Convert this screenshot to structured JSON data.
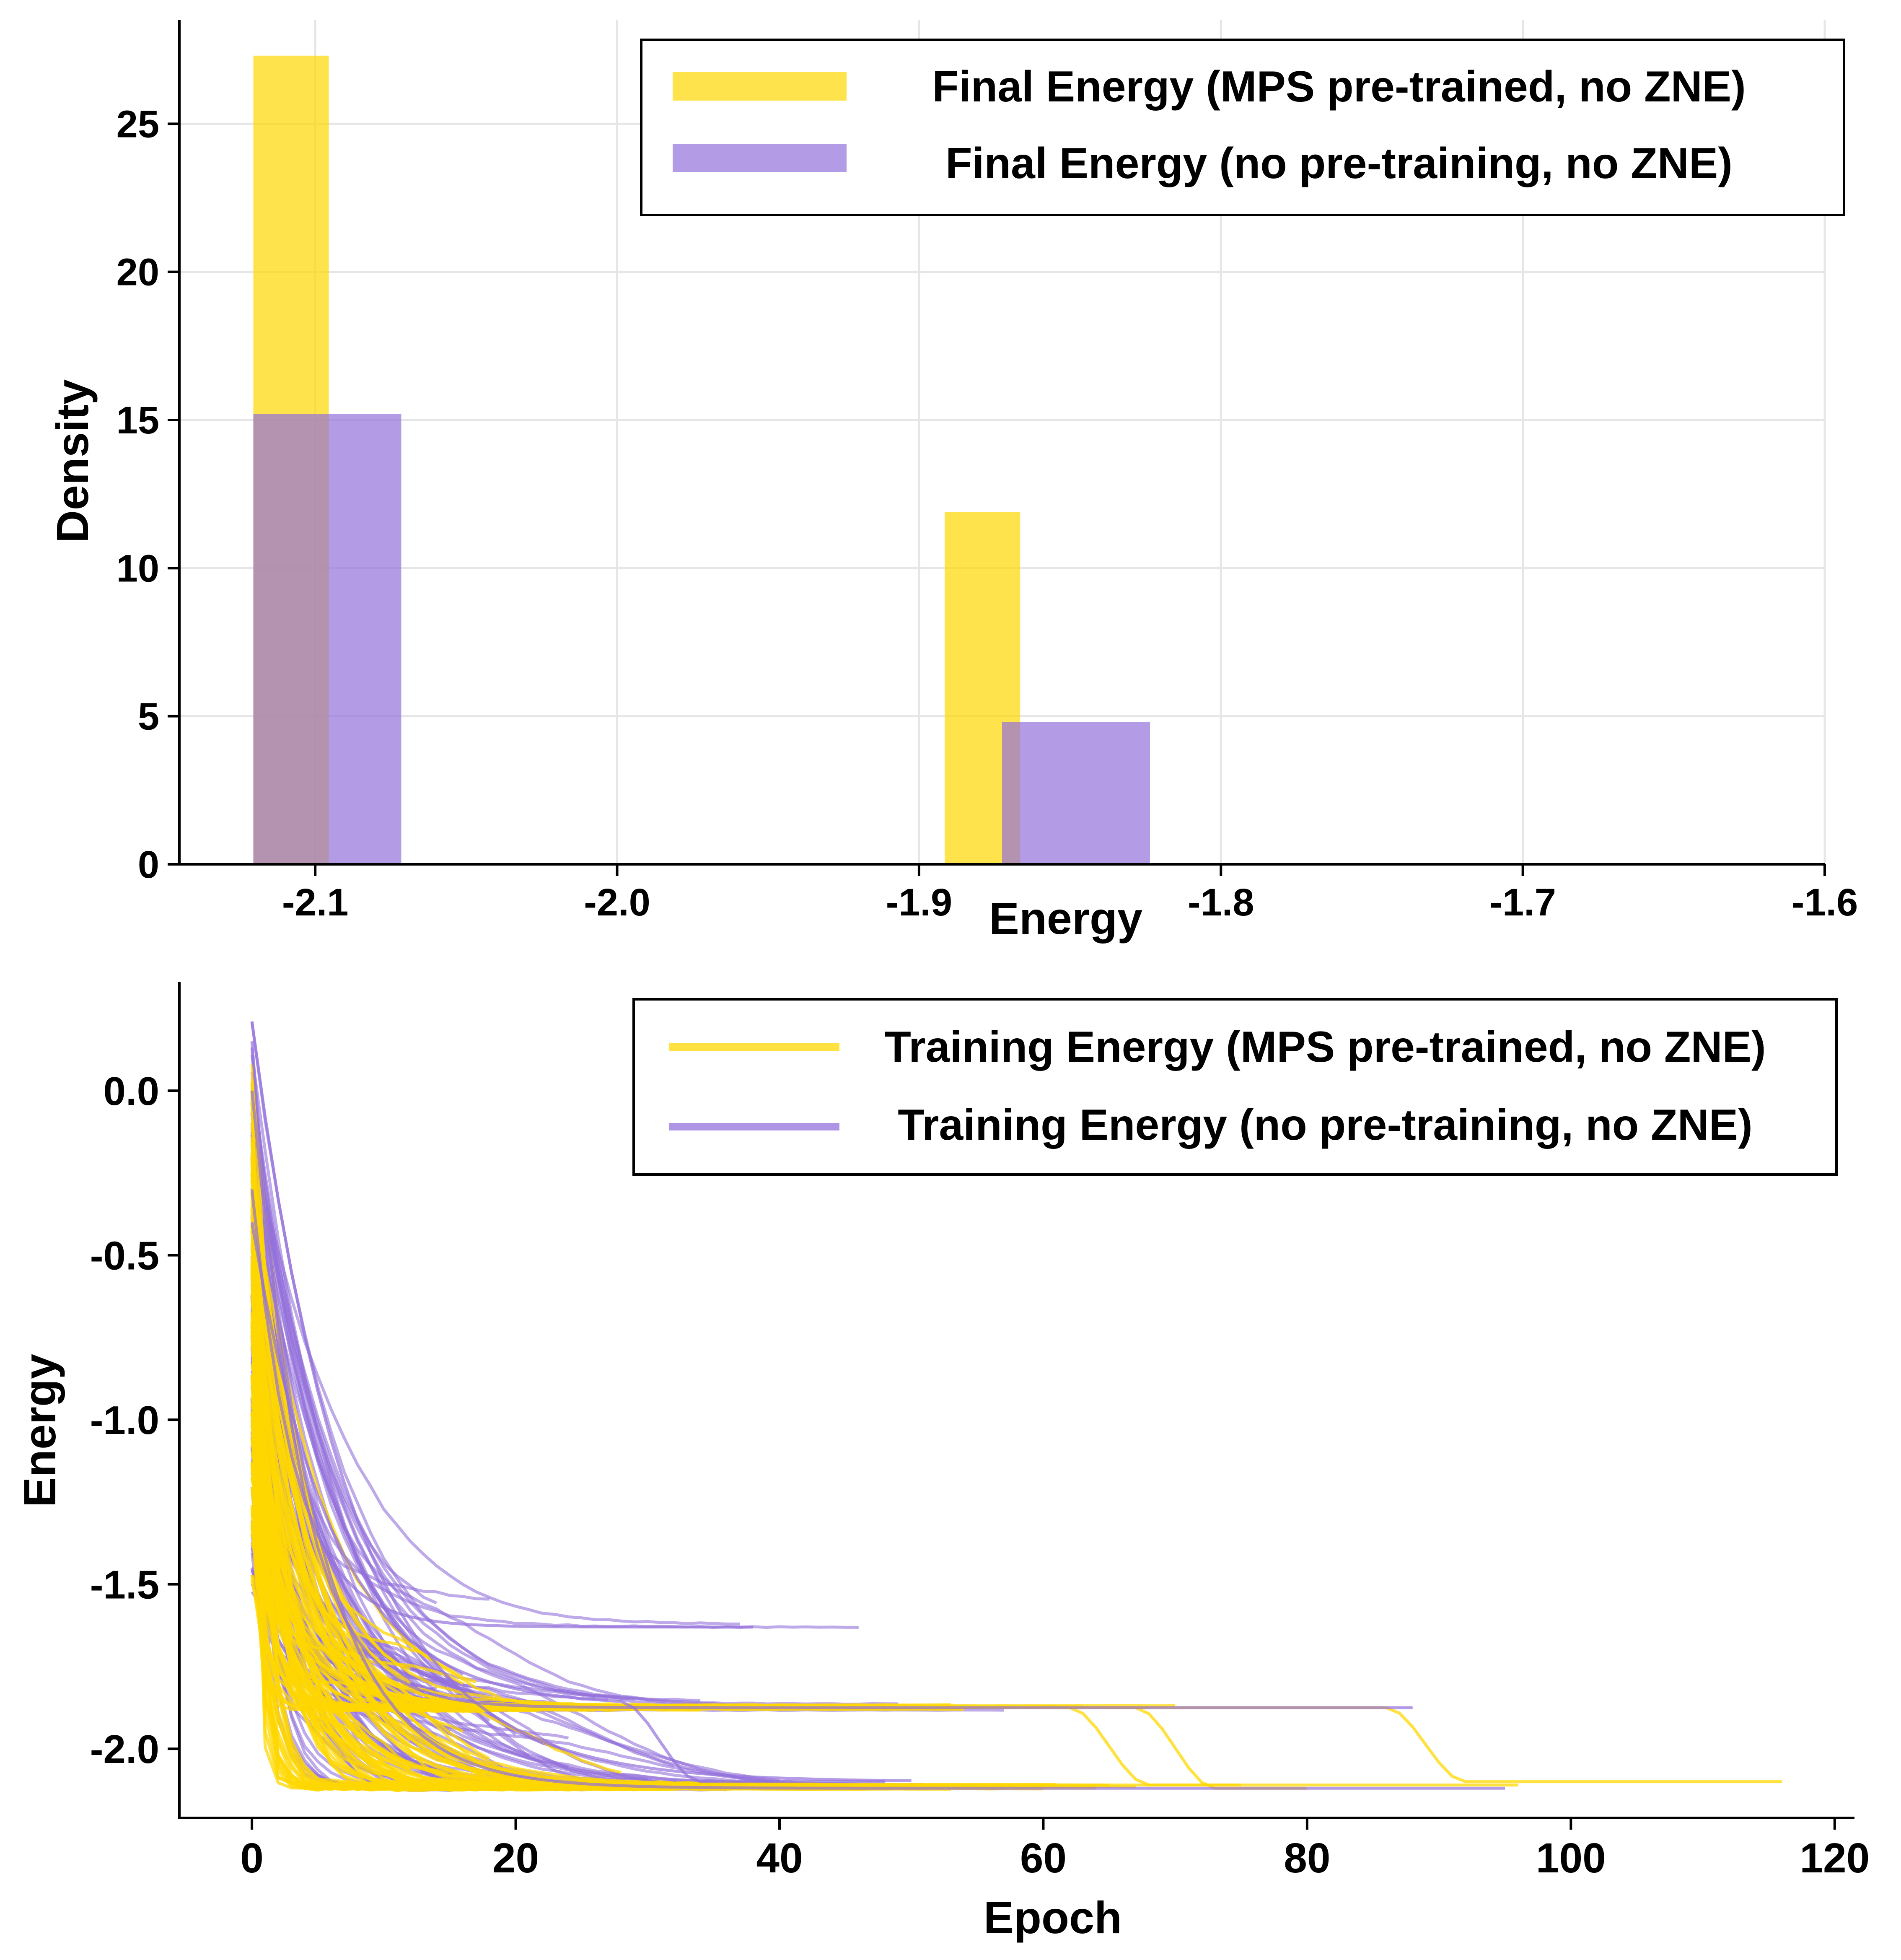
{
  "colors": {
    "mps": "#FFD700",
    "nopre": "#9370DB",
    "grid": "#E6E6E6",
    "axis": "#000000"
  },
  "chart_data": [
    {
      "type": "bar",
      "subtype": "histogram",
      "xlabel": "Energy",
      "ylabel": "Density",
      "xlim": [
        -2.145,
        -1.6
      ],
      "ylim": [
        0,
        28.5
      ],
      "xticks": [
        -2.1,
        -2.0,
        -1.9,
        -1.8,
        -1.7,
        -1.6
      ],
      "xtick_labels": [
        "-2.1",
        "-2.0",
        "-1.9",
        "-1.8",
        "-1.7",
        "-1.6"
      ],
      "yticks": [
        0,
        5,
        10,
        15,
        20,
        25
      ],
      "ytick_labels": [
        "0",
        "5",
        "10",
        "15",
        "20",
        "25"
      ],
      "grid": true,
      "legend_position": "upper right",
      "series": [
        {
          "name": "Final Energy (MPS pre-trained, no ZNE)",
          "color_key": "mps",
          "opacity": 0.7,
          "bins": [
            {
              "x0": -2.1205,
              "x1": -2.0955,
              "value": 27.3
            },
            {
              "x0": -1.8915,
              "x1": -1.8665,
              "value": 11.9
            }
          ]
        },
        {
          "name": "Final Energy (no pre-training, no ZNE)",
          "color_key": "nopre",
          "opacity": 0.7,
          "bins": [
            {
              "x0": -2.1205,
              "x1": -2.0715,
              "value": 15.2
            },
            {
              "x0": -1.8725,
              "x1": -1.8235,
              "value": 4.8
            }
          ]
        }
      ]
    },
    {
      "type": "line",
      "xlabel": "Epoch",
      "ylabel": "Energy",
      "xlim": [
        -5.5,
        121.5
      ],
      "ylim": [
        -2.21,
        0.33
      ],
      "xticks": [
        0,
        20,
        40,
        60,
        80,
        100,
        120
      ],
      "xtick_labels": [
        "0",
        "20",
        "40",
        "60",
        "80",
        "100",
        "120"
      ],
      "yticks": [
        0.0,
        -0.5,
        -1.0,
        -1.5,
        -2.0
      ],
      "ytick_labels": [
        "0.0",
        "-0.5",
        "-1.0",
        "-1.5",
        "-2.0"
      ],
      "grid": false,
      "legend_position": "upper right",
      "series": [
        {
          "name": "Training Energy (MPS pre-trained, no ZNE)",
          "color_key": "mps",
          "opacity": 0.75,
          "num_runs": 100,
          "start_range": [
            -1.5,
            0.08
          ],
          "final_levels": [
            -2.12,
            -1.87
          ],
          "max_epoch": 116
        },
        {
          "name": "Training Energy (no pre-training, no ZNE)",
          "color_key": "nopre",
          "opacity": 0.6,
          "num_runs": 100,
          "start_range": [
            -1.55,
            0.22
          ],
          "final_levels": [
            -2.12,
            -1.87,
            -1.63
          ],
          "max_epoch": 95
        }
      ]
    }
  ]
}
